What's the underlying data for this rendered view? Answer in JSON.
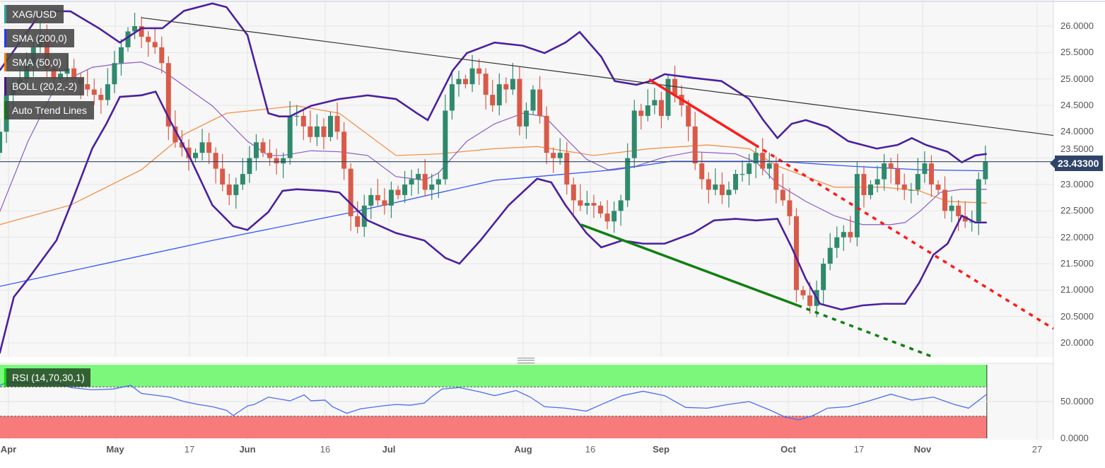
{
  "legend": [
    {
      "label": "XAG/USD",
      "color": "#26a69a"
    },
    {
      "label": "SMA (200,0)",
      "color": "#1e3cff"
    },
    {
      "label": "SMA (50,0)",
      "color": "#f57c00"
    },
    {
      "label": "BOLL (20,2,-2)",
      "color": "#4a148c"
    },
    {
      "label": "Auto Trend Lines",
      "color": "#0a7d0a"
    }
  ],
  "last_price": "23.43300",
  "rsi_label": "RSI (14,70,30,1)",
  "colors": {
    "up": "#2f8a6d",
    "down": "#d95a48",
    "sma200": "#3355ff",
    "sma50": "#f5883a",
    "boll": "#4b1fa0",
    "boll_mid": "#8a5cc8",
    "trend": "#333333",
    "resist": "#ff1a1a",
    "support": "#108010",
    "rsi": "#4a6cf7",
    "ob": "#7cf77c",
    "os": "#f77b7b"
  },
  "chart_data": {
    "type": "candlestick",
    "title": "XAG/USD",
    "ylim": [
      19.7,
      26.5
    ],
    "yticks": [
      "26.0000",
      "25.5000",
      "25.0000",
      "24.5000",
      "24.0000",
      "23.5000",
      "23.0000",
      "22.5000",
      "22.0000",
      "21.5000",
      "21.0000",
      "20.5000",
      "20.0000"
    ],
    "xticks": [
      {
        "label": "Apr",
        "major": true
      },
      {
        "label": "May",
        "major": true
      },
      {
        "label": "17",
        "major": false
      },
      {
        "label": "Jun",
        "major": true
      },
      {
        "label": "16",
        "major": false
      },
      {
        "label": "Jul",
        "major": true
      },
      {
        "label": "Aug",
        "major": true
      },
      {
        "label": "16",
        "major": false
      },
      {
        "label": "Sep",
        "major": true
      },
      {
        "label": "Oct",
        "major": true
      },
      {
        "label": "17",
        "major": false
      },
      {
        "label": "Nov",
        "major": true
      },
      {
        "label": "27",
        "major": false
      }
    ],
    "closes": [
      23.6,
      24.0,
      24.7,
      24.9,
      25.0,
      25.3,
      25.6,
      25.8,
      25.2,
      25.0,
      25.1,
      25.2,
      25.0,
      24.9,
      24.8,
      24.7,
      24.6,
      24.9,
      25.3,
      25.6,
      25.9,
      26.0,
      25.8,
      25.7,
      25.6,
      25.3,
      24.1,
      23.8,
      23.7,
      23.5,
      23.6,
      23.8,
      23.6,
      23.3,
      23.0,
      22.8,
      23.0,
      23.2,
      23.5,
      23.8,
      23.6,
      23.5,
      23.4,
      23.5,
      24.3,
      24.3,
      24.1,
      23.9,
      24.1,
      23.9,
      24.3,
      24.0,
      23.3,
      22.4,
      22.2,
      22.6,
      22.8,
      22.7,
      22.6,
      22.9,
      22.8,
      23.0,
      23.1,
      23.2,
      22.9,
      23.0,
      23.1,
      24.4,
      24.9,
      25.0,
      24.9,
      25.2,
      25.1,
      24.7,
      24.5,
      24.9,
      24.8,
      25.0,
      24.1,
      24.4,
      24.8,
      24.3,
      23.6,
      23.5,
      23.6,
      23.0,
      22.7,
      22.6,
      22.65,
      22.6,
      22.45,
      22.3,
      22.5,
      22.7,
      23.5,
      24.4,
      24.3,
      24.5,
      24.6,
      24.3,
      25.0,
      24.7,
      24.5,
      24.1,
      23.4,
      23.1,
      22.9,
      23.0,
      22.8,
      22.9,
      23.2,
      23.2,
      23.4,
      23.6,
      23.3,
      23.4,
      22.9,
      22.7,
      22.4,
      21.0,
      20.9,
      20.7,
      21.0,
      21.5,
      21.8,
      22.0,
      22.1,
      22.0,
      23.2,
      22.8,
      23.0,
      23.1,
      23.4,
      23.3,
      23.0,
      22.9,
      22.9,
      23.2,
      23.4,
      23.0,
      22.9,
      22.5,
      22.6,
      22.4,
      22.3,
      22.3,
      23.1,
      23.433
    ],
    "current_price": 23.433,
    "sma200": [
      [
        1.0,
        21.07
      ],
      [
        32.5,
        21.94
      ],
      [
        53.4,
        22.48
      ],
      [
        74.3,
        23.08
      ],
      [
        92.1,
        23.28
      ],
      [
        100.5,
        23.44
      ],
      [
        116.2,
        23.44
      ],
      [
        126.7,
        23.35
      ],
      [
        137.2,
        23.28
      ],
      [
        147.2,
        23.26
      ]
    ],
    "sma50": [
      [
        1.0,
        22.24
      ],
      [
        11.5,
        22.61
      ],
      [
        22.0,
        23.28
      ],
      [
        28.3,
        23.95
      ],
      [
        34.6,
        24.35
      ],
      [
        45.0,
        24.49
      ],
      [
        51.3,
        24.35
      ],
      [
        59.7,
        23.55
      ],
      [
        66.0,
        23.58
      ],
      [
        74.3,
        23.68
      ],
      [
        80.6,
        23.72
      ],
      [
        89.0,
        23.55
      ],
      [
        97.4,
        23.68
      ],
      [
        105.8,
        23.75
      ],
      [
        112.0,
        23.68
      ],
      [
        116.2,
        23.35
      ],
      [
        124.6,
        22.95
      ],
      [
        131.9,
        22.95
      ],
      [
        137.2,
        22.88
      ],
      [
        141.4,
        22.68
      ],
      [
        147.2,
        22.65
      ]
    ],
    "boll_upper": [
      [
        1.0,
        25.16
      ],
      [
        7.3,
        26.29
      ],
      [
        11.5,
        26.28
      ],
      [
        15.7,
        25.96
      ],
      [
        18.8,
        25.69
      ],
      [
        22.0,
        25.96
      ],
      [
        25.1,
        25.96
      ],
      [
        28.3,
        26.29
      ],
      [
        32.5,
        26.43
      ],
      [
        34.6,
        26.36
      ],
      [
        37.7,
        25.83
      ],
      [
        40.8,
        24.35
      ],
      [
        42.4,
        24.29
      ],
      [
        44.0,
        24.29
      ],
      [
        47.1,
        24.49
      ],
      [
        51.3,
        24.62
      ],
      [
        55.5,
        24.69
      ],
      [
        59.7,
        24.62
      ],
      [
        62.8,
        24.35
      ],
      [
        64.4,
        24.22
      ],
      [
        68.1,
        25.16
      ],
      [
        70.2,
        25.49
      ],
      [
        74.3,
        25.69
      ],
      [
        78.5,
        25.63
      ],
      [
        81.7,
        25.49
      ],
      [
        84.8,
        25.69
      ],
      [
        86.9,
        25.89
      ],
      [
        90.1,
        25.42
      ],
      [
        92.1,
        24.96
      ],
      [
        95.3,
        24.89
      ],
      [
        97.4,
        24.96
      ],
      [
        99.5,
        25.09
      ],
      [
        103.7,
        25.02
      ],
      [
        107.9,
        24.96
      ],
      [
        112.0,
        24.62
      ],
      [
        114.1,
        24.22
      ],
      [
        116.2,
        23.88
      ],
      [
        118.3,
        24.15
      ],
      [
        120.4,
        24.22
      ],
      [
        123.6,
        24.09
      ],
      [
        126.7,
        23.82
      ],
      [
        130.9,
        23.68
      ],
      [
        134.0,
        23.75
      ],
      [
        136.1,
        23.88
      ],
      [
        138.2,
        23.75
      ],
      [
        141.4,
        23.62
      ],
      [
        143.5,
        23.42
      ],
      [
        145.5,
        23.55
      ],
      [
        147.2,
        23.58
      ]
    ],
    "boll_mid": [
      [
        1.0,
        22.48
      ],
      [
        5.2,
        23.82
      ],
      [
        9.4,
        24.89
      ],
      [
        14.7,
        25.22
      ],
      [
        18.8,
        25.29
      ],
      [
        22.0,
        25.32
      ],
      [
        25.1,
        25.16
      ],
      [
        32.5,
        24.49
      ],
      [
        35.6,
        24.09
      ],
      [
        37.7,
        23.82
      ],
      [
        40.8,
        23.55
      ],
      [
        42.9,
        23.55
      ],
      [
        47.1,
        23.64
      ],
      [
        51.3,
        23.62
      ],
      [
        55.5,
        23.55
      ],
      [
        59.7,
        23.15
      ],
      [
        63.9,
        23.08
      ],
      [
        66.0,
        23.22
      ],
      [
        70.2,
        23.82
      ],
      [
        74.3,
        24.15
      ],
      [
        78.5,
        24.35
      ],
      [
        81.7,
        24.29
      ],
      [
        84.8,
        23.88
      ],
      [
        87.9,
        23.48
      ],
      [
        91.1,
        23.28
      ],
      [
        95.3,
        23.35
      ],
      [
        99.5,
        23.52
      ],
      [
        103.7,
        23.62
      ],
      [
        110.0,
        23.58
      ],
      [
        113.1,
        23.42
      ],
      [
        116.2,
        23.01
      ],
      [
        120.4,
        22.68
      ],
      [
        124.6,
        22.41
      ],
      [
        128.8,
        22.24
      ],
      [
        133.0,
        22.24
      ],
      [
        135.1,
        22.28
      ],
      [
        137.2,
        22.48
      ],
      [
        140.3,
        22.85
      ],
      [
        143.5,
        22.91
      ],
      [
        147.2,
        22.91
      ]
    ],
    "boll_lower": [
      [
        1.0,
        19.8
      ],
      [
        3.1,
        20.87
      ],
      [
        5.2,
        21.21
      ],
      [
        9.4,
        21.94
      ],
      [
        11.5,
        22.61
      ],
      [
        14.7,
        23.68
      ],
      [
        16.8,
        24.15
      ],
      [
        18.8,
        24.66
      ],
      [
        22.0,
        24.69
      ],
      [
        24.1,
        24.76
      ],
      [
        26.2,
        24.22
      ],
      [
        29.3,
        23.48
      ],
      [
        32.5,
        22.61
      ],
      [
        35.6,
        22.21
      ],
      [
        37.7,
        22.14
      ],
      [
        40.8,
        22.48
      ],
      [
        42.9,
        22.88
      ],
      [
        45.0,
        22.91
      ],
      [
        49.2,
        22.88
      ],
      [
        51.3,
        22.85
      ],
      [
        55.5,
        22.32
      ],
      [
        59.7,
        22.08
      ],
      [
        63.9,
        21.94
      ],
      [
        67.0,
        21.61
      ],
      [
        69.1,
        21.5
      ],
      [
        72.2,
        21.94
      ],
      [
        76.4,
        22.61
      ],
      [
        80.6,
        23.11
      ],
      [
        82.7,
        23.04
      ],
      [
        84.8,
        22.61
      ],
      [
        87.9,
        22.08
      ],
      [
        90.1,
        21.81
      ],
      [
        93.2,
        21.94
      ],
      [
        96.3,
        21.88
      ],
      [
        99.5,
        21.88
      ],
      [
        103.7,
        22.08
      ],
      [
        106.8,
        22.32
      ],
      [
        110.0,
        22.35
      ],
      [
        113.1,
        22.32
      ],
      [
        116.2,
        22.35
      ],
      [
        118.3,
        21.81
      ],
      [
        120.4,
        21.21
      ],
      [
        122.5,
        20.74
      ],
      [
        125.7,
        20.63
      ],
      [
        128.8,
        20.71
      ],
      [
        131.9,
        20.74
      ],
      [
        135.1,
        20.74
      ],
      [
        137.2,
        21.14
      ],
      [
        139.3,
        21.67
      ],
      [
        141.4,
        21.88
      ],
      [
        143.5,
        22.41
      ],
      [
        145.5,
        22.28
      ],
      [
        147.2,
        22.28
      ]
    ],
    "trendlines": [
      {
        "name": "long-term-resistance",
        "style": "solid",
        "points": [
          [
            22.0,
            26.16
          ],
          [
            157.1,
            23.93
          ]
        ]
      },
      {
        "name": "resistance",
        "style": "solid",
        "points": [
          [
            97.2,
            24.99
          ],
          [
            112.9,
            23.75
          ]
        ]
      },
      {
        "name": "resistance-extension",
        "style": "dotted",
        "points": [
          [
            112.9,
            23.75
          ],
          [
            164.7,
            20.27
          ]
        ]
      },
      {
        "name": "support",
        "style": "solid",
        "points": [
          [
            87.1,
            22.24
          ],
          [
            119.2,
            20.71
          ]
        ]
      },
      {
        "name": "support-extension",
        "style": "dotted",
        "points": [
          [
            119.2,
            20.71
          ],
          [
            139.3,
            19.73
          ]
        ]
      }
    ],
    "rsi": {
      "params": "14,70,30,1",
      "overbought": 70,
      "oversold": 30,
      "yticks": [
        "50.0000",
        "0.0000"
      ],
      "values": [
        [
          1.0,
          72
        ],
        [
          2.1,
          76
        ],
        [
          4.2,
          75
        ],
        [
          7.3,
          74
        ],
        [
          9.4,
          76
        ],
        [
          11.5,
          69
        ],
        [
          14.7,
          66
        ],
        [
          17.8,
          67
        ],
        [
          20.4,
          72
        ],
        [
          22.0,
          61
        ],
        [
          26.2,
          56
        ],
        [
          28.3,
          50
        ],
        [
          30.4,
          46
        ],
        [
          32.5,
          43
        ],
        [
          34.6,
          38
        ],
        [
          35.6,
          31
        ],
        [
          37.7,
          44
        ],
        [
          38.7,
          46
        ],
        [
          40.8,
          56
        ],
        [
          44.0,
          51
        ],
        [
          46.1,
          59
        ],
        [
          47.1,
          51
        ],
        [
          49.2,
          52
        ],
        [
          50.3,
          43
        ],
        [
          52.4,
          34
        ],
        [
          54.4,
          40
        ],
        [
          57.6,
          44
        ],
        [
          59.7,
          46
        ],
        [
          61.8,
          45
        ],
        [
          63.9,
          48
        ],
        [
          64.9,
          56
        ],
        [
          66.5,
          67
        ],
        [
          69.1,
          69
        ],
        [
          72.2,
          63
        ],
        [
          74.3,
          58
        ],
        [
          77.5,
          65
        ],
        [
          79.6,
          56
        ],
        [
          81.7,
          43
        ],
        [
          84.8,
          41
        ],
        [
          87.9,
          37
        ],
        [
          90.1,
          46
        ],
        [
          93.2,
          58
        ],
        [
          96.3,
          64
        ],
        [
          99.5,
          58
        ],
        [
          102.6,
          42
        ],
        [
          105.8,
          41
        ],
        [
          108.9,
          46
        ],
        [
          112.0,
          50
        ],
        [
          115.2,
          38
        ],
        [
          117.3,
          29
        ],
        [
          119.4,
          25
        ],
        [
          121.5,
          31
        ],
        [
          123.6,
          41
        ],
        [
          126.7,
          43
        ],
        [
          129.8,
          51
        ],
        [
          133.0,
          60
        ],
        [
          136.1,
          52
        ],
        [
          139.3,
          56
        ],
        [
          142.4,
          46
        ],
        [
          144.5,
          41
        ],
        [
          147.2,
          60
        ]
      ]
    }
  }
}
